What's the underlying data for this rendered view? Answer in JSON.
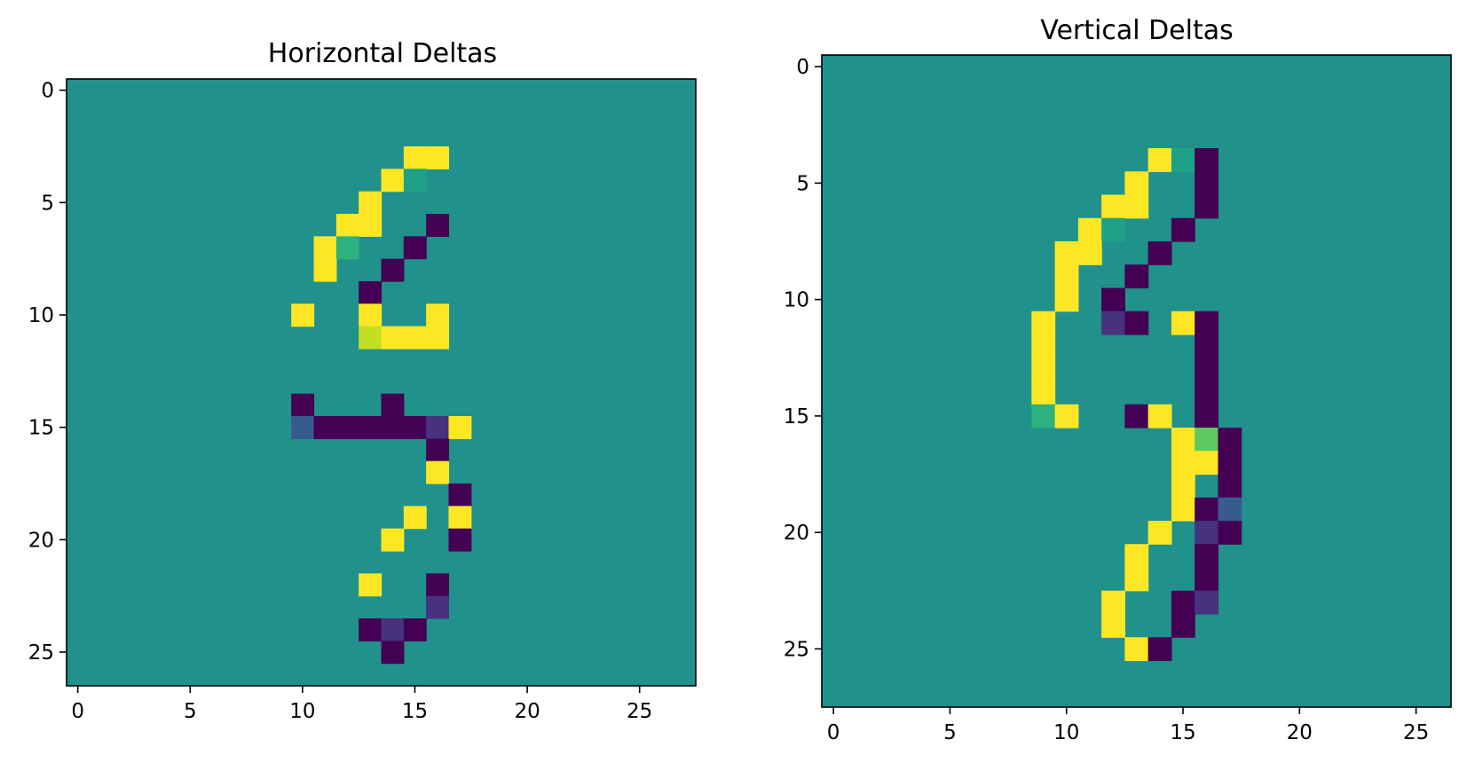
{
  "chart_data": [
    {
      "type": "heatmap",
      "title": "Horizontal Deltas",
      "rows": 27,
      "cols": 28,
      "xlim": [
        -0.5,
        27.5
      ],
      "ylim": [
        26.5,
        -0.5
      ],
      "xticks": [
        0,
        5,
        10,
        15,
        20,
        25
      ],
      "yticks": [
        0,
        5,
        10,
        15,
        20,
        25
      ],
      "background_value": 0,
      "value_range": [
        -1,
        1
      ],
      "colors": {
        "-1": "#440154",
        "-0.85": "#46327e",
        "-0.7": "#365c8d",
        "0": "#21918c",
        "0.3": "#1fa187",
        "0.4": "#2db27d",
        "0.85": "#c2df23",
        "1": "#fde725"
      },
      "cells": [
        [
          3,
          15,
          1
        ],
        [
          3,
          16,
          1
        ],
        [
          4,
          14,
          1
        ],
        [
          4,
          15,
          0.3
        ],
        [
          5,
          13,
          1
        ],
        [
          6,
          12,
          1
        ],
        [
          6,
          13,
          1
        ],
        [
          6,
          16,
          -1
        ],
        [
          7,
          11,
          1
        ],
        [
          7,
          12,
          0.4
        ],
        [
          7,
          15,
          -1
        ],
        [
          8,
          11,
          1
        ],
        [
          8,
          14,
          -1
        ],
        [
          9,
          13,
          -1
        ],
        [
          10,
          10,
          1
        ],
        [
          10,
          13,
          1
        ],
        [
          10,
          16,
          1
        ],
        [
          11,
          13,
          0.85
        ],
        [
          11,
          14,
          1
        ],
        [
          11,
          15,
          1
        ],
        [
          11,
          16,
          1
        ],
        [
          14,
          10,
          -1
        ],
        [
          14,
          14,
          -1
        ],
        [
          15,
          10,
          -0.7
        ],
        [
          15,
          11,
          -1
        ],
        [
          15,
          12,
          -1
        ],
        [
          15,
          13,
          -1
        ],
        [
          15,
          14,
          -1
        ],
        [
          15,
          15,
          -1
        ],
        [
          15,
          16,
          -0.85
        ],
        [
          15,
          17,
          1
        ],
        [
          16,
          16,
          -1
        ],
        [
          17,
          16,
          1
        ],
        [
          18,
          17,
          -1
        ],
        [
          19,
          15,
          1
        ],
        [
          19,
          17,
          1
        ],
        [
          20,
          14,
          1
        ],
        [
          20,
          17,
          -1
        ],
        [
          22,
          13,
          1
        ],
        [
          22,
          16,
          -1
        ],
        [
          23,
          16,
          -0.85
        ],
        [
          24,
          13,
          -1
        ],
        [
          24,
          14,
          -0.85
        ],
        [
          24,
          15,
          -1
        ],
        [
          25,
          14,
          -1
        ]
      ]
    },
    {
      "type": "heatmap",
      "title": "Vertical Deltas",
      "rows": 28,
      "cols": 27,
      "xlim": [
        -0.5,
        26.5
      ],
      "ylim": [
        27.5,
        -0.5
      ],
      "xticks": [
        0,
        5,
        10,
        15,
        20,
        25
      ],
      "yticks": [
        0,
        5,
        10,
        15,
        20,
        25
      ],
      "background_value": 0,
      "value_range": [
        -1,
        1
      ],
      "colors": {
        "-1": "#440154",
        "-0.85": "#46327e",
        "-0.7": "#365c8d",
        "0": "#21918c",
        "0.3": "#1fa187",
        "0.4": "#2db27d",
        "0.6": "#5ec962",
        "1": "#fde725"
      },
      "cells": [
        [
          4,
          14,
          1
        ],
        [
          4,
          15,
          0.3
        ],
        [
          4,
          16,
          -1
        ],
        [
          5,
          13,
          1
        ],
        [
          5,
          16,
          -1
        ],
        [
          6,
          12,
          1
        ],
        [
          6,
          13,
          1
        ],
        [
          6,
          16,
          -1
        ],
        [
          7,
          11,
          1
        ],
        [
          7,
          12,
          0.3
        ],
        [
          7,
          15,
          -1
        ],
        [
          8,
          10,
          1
        ],
        [
          8,
          11,
          1
        ],
        [
          8,
          14,
          -1
        ],
        [
          9,
          10,
          1
        ],
        [
          9,
          13,
          -1
        ],
        [
          10,
          10,
          1
        ],
        [
          10,
          12,
          -1
        ],
        [
          11,
          9,
          1
        ],
        [
          11,
          12,
          -0.85
        ],
        [
          11,
          13,
          -1
        ],
        [
          11,
          15,
          1
        ],
        [
          11,
          16,
          -1
        ],
        [
          12,
          9,
          1
        ],
        [
          12,
          16,
          -1
        ],
        [
          13,
          9,
          1
        ],
        [
          13,
          16,
          -1
        ],
        [
          14,
          9,
          1
        ],
        [
          14,
          16,
          -1
        ],
        [
          15,
          9,
          0.4
        ],
        [
          15,
          10,
          1
        ],
        [
          15,
          13,
          -1
        ],
        [
          15,
          14,
          1
        ],
        [
          15,
          16,
          -1
        ],
        [
          16,
          15,
          1
        ],
        [
          16,
          16,
          0.6
        ],
        [
          16,
          17,
          -1
        ],
        [
          17,
          15,
          1
        ],
        [
          17,
          16,
          1
        ],
        [
          17,
          17,
          -1
        ],
        [
          18,
          15,
          1
        ],
        [
          18,
          17,
          -1
        ],
        [
          19,
          15,
          1
        ],
        [
          19,
          16,
          -1
        ],
        [
          19,
          17,
          -0.7
        ],
        [
          20,
          14,
          1
        ],
        [
          20,
          16,
          -0.85
        ],
        [
          20,
          17,
          -1
        ],
        [
          21,
          13,
          1
        ],
        [
          21,
          16,
          -1
        ],
        [
          22,
          13,
          1
        ],
        [
          22,
          16,
          -1
        ],
        [
          23,
          12,
          1
        ],
        [
          23,
          15,
          -1
        ],
        [
          23,
          16,
          -0.85
        ],
        [
          24,
          12,
          1
        ],
        [
          24,
          15,
          -1
        ],
        [
          25,
          13,
          1
        ],
        [
          25,
          14,
          -1
        ]
      ]
    }
  ]
}
